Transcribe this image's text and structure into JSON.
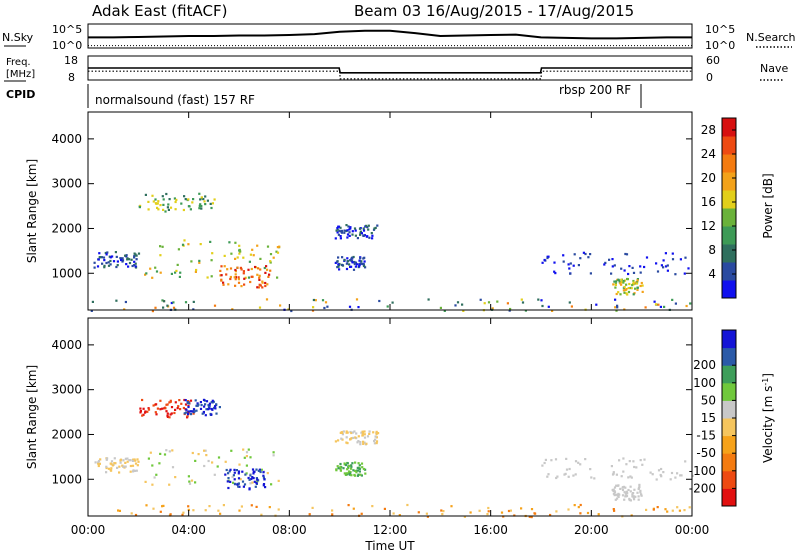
{
  "header": {
    "radar": "Adak East (fitACF)",
    "beam_range": "Beam 03 16/Aug/2015 - 17/Aug/2015"
  },
  "strip_labels": {
    "nsky": "N.Sky",
    "nsearch": "N.Search",
    "freq_line1": "Freq.",
    "freq_line2": "[MHz]",
    "nave": "Nave",
    "cpid": "CPID"
  },
  "strip_ticks": {
    "noise_top": "10^5",
    "noise_bottom": "10^0",
    "freq_top": "18",
    "freq_bottom": "8",
    "nave_top": "60",
    "nave_bottom": "0"
  },
  "cpid_labels": {
    "first": "normalsound (fast) 157 RF",
    "second": "rbsp 200 RF"
  },
  "colors": {
    "power": [
      "#1010ee",
      "#2a4aa0",
      "#2f6f5e",
      "#3d9a56",
      "#6ab23a",
      "#e2cf1a",
      "#f3a21a",
      "#f47b10",
      "#ee4a12",
      "#d71010"
    ],
    "velocity": [
      "#e21010",
      "#ee4a12",
      "#f47b10",
      "#f6a21a",
      "#f5c55e",
      "#c8c8c8",
      "#70c83c",
      "#3e9e5a",
      "#2b5aa8",
      "#1414d6"
    ]
  },
  "chart_data": [
    {
      "type": "line",
      "series": [
        {
          "name": "N.Sky",
          "x": [
            0,
            1,
            2,
            3,
            4,
            5,
            6,
            7,
            8,
            9,
            10,
            11,
            12,
            13,
            14,
            15,
            16,
            17,
            18,
            19,
            20,
            21,
            22,
            23,
            24
          ],
          "values": [
            2.2,
            2.2,
            2.3,
            2.4,
            2.5,
            2.5,
            2.6,
            2.6,
            2.7,
            2.9,
            3.4,
            3.6,
            3.6,
            3.1,
            2.5,
            2.6,
            2.7,
            2.8,
            2.2,
            2.1,
            2.0,
            2.0,
            2.1,
            2.2,
            2.2
          ]
        },
        {
          "name": "N.Search",
          "x": [
            0,
            4,
            8,
            12,
            16,
            20,
            24
          ],
          "values": [
            0.5,
            0.5,
            0.5,
            0.5,
            0.5,
            0.5,
            0.5
          ]
        }
      ]
    },
    {
      "type": "line",
      "series": [
        {
          "name": "Freq.",
          "x": [
            0,
            9.98,
            10.02,
            17.98,
            18.02,
            24
          ],
          "values": [
            13.0,
            13.0,
            11.0,
            11.0,
            13.0,
            13.0
          ]
        },
        {
          "name": "Nave",
          "x": [
            0,
            10,
            10.02,
            18,
            18.02,
            24
          ],
          "values": [
            22,
            22,
            3,
            3,
            22,
            22
          ]
        }
      ]
    },
    {
      "type": "heatmap",
      "ylabel": "Slant Range [km]",
      "xlim": [
        0,
        24
      ],
      "ylim": [
        180,
        4600
      ],
      "yticks": [
        1000,
        2000,
        3000,
        4000
      ],
      "colorbar": {
        "label": "Power [dB]",
        "ticks": [
          4,
          8,
          12,
          16,
          20,
          24,
          28
        ],
        "range": [
          0,
          30
        ]
      },
      "regions": [
        {
          "x0": 2.0,
          "x1": 5.0,
          "y0": 2400,
          "y1": 2800,
          "levels": [
            2,
            3,
            5
          ]
        },
        {
          "x0": 2.2,
          "x1": 7.6,
          "y0": 900,
          "y1": 1800,
          "levels": [
            3,
            4,
            5,
            6
          ]
        },
        {
          "x0": 5.2,
          "x1": 7.2,
          "y0": 700,
          "y1": 1200,
          "levels": [
            6,
            7,
            8,
            9
          ]
        },
        {
          "x0": 0.2,
          "x1": 2.0,
          "y0": 1150,
          "y1": 1500,
          "levels": [
            0,
            1,
            2
          ]
        },
        {
          "x0": 9.8,
          "x1": 11.5,
          "y0": 1800,
          "y1": 2100,
          "levels": [
            0,
            1,
            2
          ]
        },
        {
          "x0": 9.8,
          "x1": 11.0,
          "y0": 1100,
          "y1": 1400,
          "levels": [
            0,
            1,
            2
          ]
        },
        {
          "x0": 18.0,
          "x1": 24.0,
          "y0": 1000,
          "y1": 1500,
          "levels": [
            0,
            1
          ]
        },
        {
          "x0": 20.8,
          "x1": 22.0,
          "y0": 550,
          "y1": 900,
          "levels": [
            3,
            4,
            5,
            6
          ]
        },
        {
          "x0": 0.0,
          "x1": 24.0,
          "y0": 180,
          "y1": 450,
          "levels": [
            0,
            1,
            2,
            3,
            4,
            5,
            6,
            7
          ]
        }
      ]
    },
    {
      "type": "heatmap",
      "ylabel": "Slant Range [km]",
      "xlabel": "Time UT",
      "xlim": [
        0,
        24
      ],
      "ylim": [
        180,
        4600
      ],
      "yticks": [
        1000,
        2000,
        3000,
        4000
      ],
      "xticks": [
        "00:00",
        "04:00",
        "08:00",
        "12:00",
        "16:00",
        "20:00",
        "00:00"
      ],
      "colorbar": {
        "label": "Velocity [m s^-1]",
        "ticks": [
          "-200",
          "-100",
          "-50",
          "-15",
          "15",
          "50",
          "100",
          "200"
        ]
      },
      "regions": [
        {
          "x0": 2.0,
          "x1": 4.2,
          "y0": 2400,
          "y1": 2800,
          "levels": [
            0,
            1
          ]
        },
        {
          "x0": 3.8,
          "x1": 5.2,
          "y0": 2450,
          "y1": 2800,
          "levels": [
            8,
            9
          ]
        },
        {
          "x0": 2.2,
          "x1": 7.6,
          "y0": 900,
          "y1": 1700,
          "levels": [
            4,
            5,
            6
          ]
        },
        {
          "x0": 5.4,
          "x1": 7.0,
          "y0": 800,
          "y1": 1250,
          "levels": [
            8,
            9
          ]
        },
        {
          "x0": 0.2,
          "x1": 2.0,
          "y0": 1150,
          "y1": 1500,
          "levels": [
            4,
            5
          ]
        },
        {
          "x0": 9.8,
          "x1": 11.5,
          "y0": 1800,
          "y1": 2100,
          "levels": [
            5,
            4
          ]
        },
        {
          "x0": 9.8,
          "x1": 11.0,
          "y0": 1100,
          "y1": 1400,
          "levels": [
            6,
            7
          ]
        },
        {
          "x0": 18.0,
          "x1": 24.0,
          "y0": 1000,
          "y1": 1500,
          "levels": [
            5
          ]
        },
        {
          "x0": 20.8,
          "x1": 22.0,
          "y0": 550,
          "y1": 900,
          "levels": [
            5
          ]
        },
        {
          "x0": 0.0,
          "x1": 24.0,
          "y0": 180,
          "y1": 450,
          "levels": [
            2,
            3,
            4
          ]
        }
      ]
    }
  ]
}
